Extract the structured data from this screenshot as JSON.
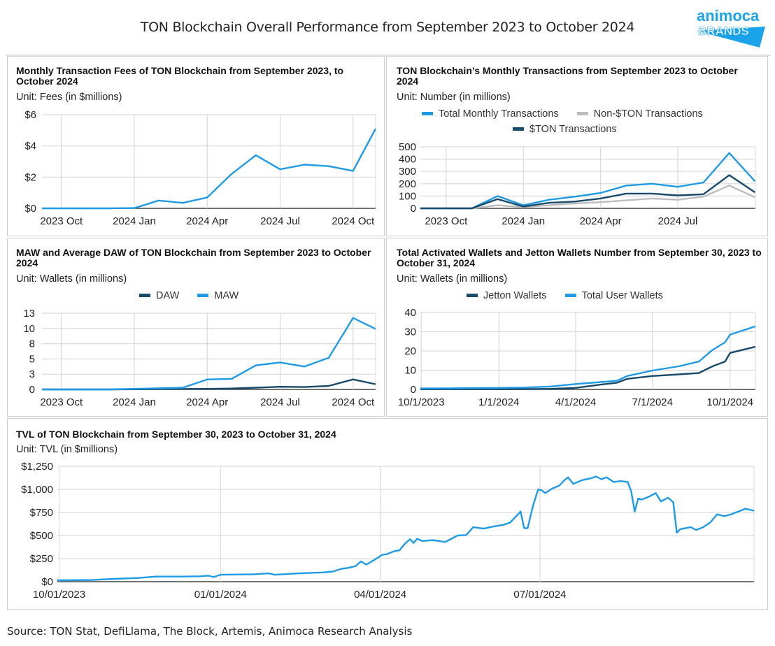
{
  "page": {
    "title": "TON Blockchain Overall Performance from September 2023 to October 2024",
    "source": "Source: TON Stat, DefiLlama, The Block, Artemis, Animoca Research Analysis",
    "logo": {
      "line1": "animoca",
      "line2": "BRANDS",
      "color": "#1aa3e8"
    }
  },
  "colors": {
    "light_blue": "#1f9be6",
    "dark_blue": "#184a6b",
    "gray": "#bdbdbd",
    "grid": "#d9d9d9",
    "axis": "#555555"
  },
  "chart_data": [
    {
      "id": "fees",
      "type": "line",
      "title": "Monthly Transaction Fees of TON Blockchain from September 2023, to October 2024",
      "unit": "Unit: Fees (in $millions)",
      "x": [
        "2023-09",
        "2023-10",
        "2023-11",
        "2023-12",
        "2024-01",
        "2024-02",
        "2024-03",
        "2024-04",
        "2024-05",
        "2024-06",
        "2024-07",
        "2024-08",
        "2024-09",
        "2024-10",
        "2024-11"
      ],
      "xtick_labels": [
        "2023 Oct",
        "2024 Jan",
        "2024 Apr",
        "2024 Jul",
        "2024 Oct"
      ],
      "xtick_index": [
        1,
        4,
        7,
        10,
        13
      ],
      "ylim": [
        0,
        6
      ],
      "yticks": [
        0,
        2,
        4,
        6
      ],
      "ytick_labels": [
        "$0",
        "$2",
        "$4",
        "$6"
      ],
      "grid": true,
      "legend": null,
      "series": [
        {
          "name": "Monthly Transaction Fees",
          "color": "light_blue",
          "values": [
            0,
            0,
            0,
            0,
            0.02,
            0.5,
            0.35,
            0.7,
            2.2,
            3.4,
            2.5,
            2.8,
            2.7,
            2.4,
            5.1
          ]
        }
      ]
    },
    {
      "id": "transactions",
      "type": "line",
      "title": "TON Blockchain’s Monthly Transactions from September 2023 to October 2024",
      "unit": "Unit: Number (in millions)",
      "x": [
        "2023-09",
        "2023-10",
        "2023-11",
        "2023-12",
        "2024-01",
        "2024-02",
        "2024-03",
        "2024-04",
        "2024-05",
        "2024-06",
        "2024-07",
        "2024-08",
        "2024-09",
        "2024-10"
      ],
      "xtick_labels": [
        "2023 Oct",
        "2024 Jan",
        "2024 Apr",
        "2024 Jul"
      ],
      "xtick_index": [
        1,
        4,
        7,
        10
      ],
      "ylim": [
        0,
        500
      ],
      "yticks": [
        0,
        100,
        200,
        300,
        400,
        500
      ],
      "ytick_labels": [
        "0",
        "100",
        "200",
        "300",
        "400",
        "500"
      ],
      "grid": true,
      "legend": "top",
      "series": [
        {
          "name": "Total Monthly Transactions",
          "color": "light_blue",
          "values": [
            0,
            0,
            0,
            100,
            25,
            70,
            95,
            125,
            185,
            200,
            175,
            210,
            450,
            220
          ]
        },
        {
          "name": "Non-$TON Transactions",
          "color": "gray",
          "values": [
            0,
            0,
            0,
            25,
            10,
            25,
            40,
            50,
            65,
            80,
            70,
            95,
            185,
            90
          ]
        },
        {
          "name": "$TON Transactions",
          "color": "dark_blue",
          "values": [
            0,
            0,
            0,
            75,
            15,
            45,
            55,
            80,
            120,
            120,
            105,
            115,
            270,
            130
          ]
        }
      ]
    },
    {
      "id": "maw_daw",
      "type": "line",
      "title": "MAW and Average DAW of TON Blockchain from September 2023 to October 2024",
      "unit": "Unit: Wallets (in millions)",
      "x": [
        "2023-09",
        "2023-10",
        "2023-11",
        "2023-12",
        "2024-01",
        "2024-02",
        "2024-03",
        "2024-04",
        "2024-05",
        "2024-06",
        "2024-07",
        "2024-08",
        "2024-09",
        "2024-10",
        "2024-11"
      ],
      "xtick_labels": [
        "2023 Oct",
        "2024 Jan",
        "2024 Apr",
        "2024 Jul",
        "2024 Oct"
      ],
      "xtick_index": [
        1,
        4,
        7,
        10,
        13
      ],
      "ylim": [
        0,
        13
      ],
      "yticks": [
        0,
        2.6,
        5.2,
        7.8,
        10.4,
        13
      ],
      "ytick_labels": [
        "0",
        "3",
        "5",
        "8",
        "10",
        "13"
      ],
      "grid": true,
      "legend": "top",
      "series": [
        {
          "name": "DAW",
          "color": "dark_blue",
          "values": [
            0,
            0,
            0,
            0,
            0.02,
            0.05,
            0.08,
            0.1,
            0.15,
            0.3,
            0.45,
            0.4,
            0.6,
            1.7,
            0.9
          ]
        },
        {
          "name": "MAW",
          "color": "light_blue",
          "values": [
            0,
            0,
            0,
            0,
            0.1,
            0.2,
            0.3,
            1.7,
            1.8,
            4.1,
            4.6,
            3.9,
            5.4,
            12.2,
            10.3
          ]
        }
      ]
    },
    {
      "id": "wallets",
      "type": "line",
      "title": "Total Activated Wallets and Jetton Wallets Number from September 30, 2023 to October 31, 2024",
      "unit": "Unit: Wallets (in millions)",
      "x": [
        "2023-09-30",
        "2023-11-01",
        "2023-12-01",
        "2024-01-01",
        "2024-02-01",
        "2024-03-01",
        "2024-04-01",
        "2024-05-01",
        "2024-05-20",
        "2024-06-01",
        "2024-07-01",
        "2024-08-01",
        "2024-08-25",
        "2024-09-10",
        "2024-09-25",
        "2024-10-01",
        "2024-10-31"
      ],
      "xtick_labels": [
        "10/1/2023",
        "1/1/2024",
        "4/1/2024",
        "7/1/2024",
        "10/1/2024"
      ],
      "xtick_dates": [
        "2023-10-01",
        "2024-01-01",
        "2024-04-01",
        "2024-07-01",
        "2024-10-01"
      ],
      "ylim": [
        0,
        40
      ],
      "yticks": [
        0,
        10,
        20,
        30,
        40
      ],
      "ytick_labels": [
        "0",
        "10",
        "20",
        "30",
        "40"
      ],
      "grid": true,
      "legend": "top",
      "series": [
        {
          "name": "Jetton Wallets",
          "color": "dark_blue",
          "values": [
            0.1,
            0.1,
            0.1,
            0.1,
            0.2,
            0.3,
            0.8,
            2.5,
            3.5,
            5.5,
            7.0,
            7.8,
            8.5,
            12.0,
            14.5,
            19.0,
            22.2
          ]
        },
        {
          "name": "Total User Wallets",
          "color": "light_blue",
          "values": [
            0.5,
            0.6,
            0.7,
            0.8,
            1.0,
            1.5,
            2.8,
            3.8,
            4.5,
            7.0,
            9.8,
            12.0,
            14.5,
            20.5,
            24.5,
            28.5,
            32.8
          ]
        }
      ]
    },
    {
      "id": "tvl",
      "type": "line",
      "title": "TVL of TON Blockchain from September 30, 2023 to October 31, 2024",
      "unit": "Unit: TVL (in $millions)",
      "x_start": "2023-09-30",
      "x_end": "2024-10-31",
      "xtick_labels": [
        "10/01/2023",
        "01/01/2024",
        "04/01/2024",
        "07/01/2024"
      ],
      "xtick_dates": [
        "2023-10-01",
        "2024-01-01",
        "2024-04-01",
        "2024-07-01"
      ],
      "ylim": [
        0,
        1250
      ],
      "yticks": [
        0,
        250,
        500,
        750,
        1000,
        1250
      ],
      "ytick_labels": [
        "$0",
        "$250",
        "$500",
        "$750",
        "$1,000",
        "$1,250"
      ],
      "grid": true,
      "legend": null,
      "series": [
        {
          "name": "TVL",
          "color": "light_blue",
          "points": [
            [
              "2023-09-30",
              15
            ],
            [
              "2023-10-20",
              18
            ],
            [
              "2023-11-01",
              30
            ],
            [
              "2023-11-15",
              40
            ],
            [
              "2023-11-25",
              55
            ],
            [
              "2023-12-10",
              55
            ],
            [
              "2023-12-20",
              58
            ],
            [
              "2023-12-25",
              65
            ],
            [
              "2023-12-28",
              50
            ],
            [
              "2024-01-01",
              75
            ],
            [
              "2024-01-20",
              80
            ],
            [
              "2024-01-28",
              90
            ],
            [
              "2024-02-01",
              75
            ],
            [
              "2024-02-15",
              90
            ],
            [
              "2024-02-28",
              100
            ],
            [
              "2024-03-05",
              110
            ],
            [
              "2024-03-10",
              140
            ],
            [
              "2024-03-14",
              150
            ],
            [
              "2024-03-18",
              170
            ],
            [
              "2024-03-21",
              220
            ],
            [
              "2024-03-24",
              185
            ],
            [
              "2024-03-29",
              240
            ],
            [
              "2024-04-02",
              290
            ],
            [
              "2024-04-05",
              300
            ],
            [
              "2024-04-09",
              330
            ],
            [
              "2024-04-12",
              340
            ],
            [
              "2024-04-15",
              410
            ],
            [
              "2024-04-18",
              460
            ],
            [
              "2024-04-20",
              420
            ],
            [
              "2024-04-22",
              465
            ],
            [
              "2024-04-25",
              440
            ],
            [
              "2024-05-01",
              450
            ],
            [
              "2024-05-08",
              430
            ],
            [
              "2024-05-12",
              470
            ],
            [
              "2024-05-15",
              500
            ],
            [
              "2024-05-20",
              505
            ],
            [
              "2024-05-24",
              590
            ],
            [
              "2024-05-30",
              575
            ],
            [
              "2024-06-05",
              600
            ],
            [
              "2024-06-10",
              615
            ],
            [
              "2024-06-14",
              640
            ],
            [
              "2024-06-16",
              680
            ],
            [
              "2024-06-20",
              760
            ],
            [
              "2024-06-22",
              580
            ],
            [
              "2024-06-24",
              580
            ],
            [
              "2024-06-27",
              820
            ],
            [
              "2024-06-30",
              1000
            ],
            [
              "2024-07-02",
              990
            ],
            [
              "2024-07-04",
              960
            ],
            [
              "2024-07-08",
              1010
            ],
            [
              "2024-07-12",
              1040
            ],
            [
              "2024-07-15",
              1100
            ],
            [
              "2024-07-17",
              1130
            ],
            [
              "2024-07-20",
              1060
            ],
            [
              "2024-07-25",
              1100
            ],
            [
              "2024-07-30",
              1120
            ],
            [
              "2024-08-02",
              1140
            ],
            [
              "2024-08-05",
              1110
            ],
            [
              "2024-08-08",
              1130
            ],
            [
              "2024-08-12",
              1080
            ],
            [
              "2024-08-16",
              1090
            ],
            [
              "2024-08-20",
              1080
            ],
            [
              "2024-08-22",
              980
            ],
            [
              "2024-08-24",
              760
            ],
            [
              "2024-08-26",
              900
            ],
            [
              "2024-08-28",
              890
            ],
            [
              "2024-09-01",
              920
            ],
            [
              "2024-09-05",
              960
            ],
            [
              "2024-09-08",
              870
            ],
            [
              "2024-09-12",
              910
            ],
            [
              "2024-09-15",
              860
            ],
            [
              "2024-09-17",
              530
            ],
            [
              "2024-09-19",
              570
            ],
            [
              "2024-09-22",
              580
            ],
            [
              "2024-09-25",
              590
            ],
            [
              "2024-09-28",
              560
            ],
            [
              "2024-10-02",
              590
            ],
            [
              "2024-10-06",
              640
            ],
            [
              "2024-10-10",
              730
            ],
            [
              "2024-10-14",
              710
            ],
            [
              "2024-10-18",
              730
            ],
            [
              "2024-10-22",
              760
            ],
            [
              "2024-10-26",
              790
            ],
            [
              "2024-10-31",
              770
            ]
          ]
        }
      ]
    }
  ]
}
